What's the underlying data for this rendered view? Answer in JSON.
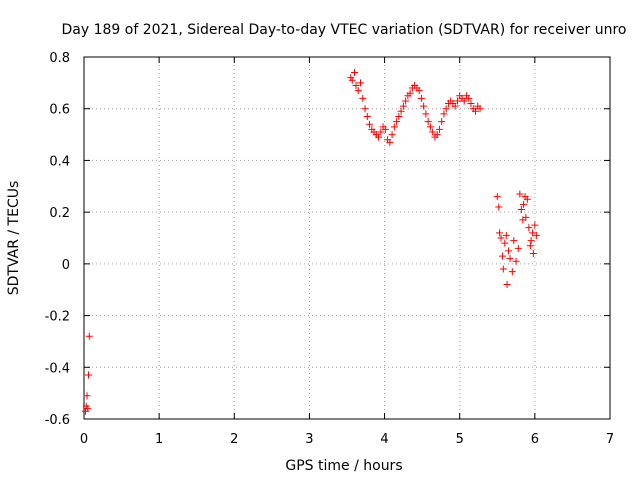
{
  "chart_data": {
    "type": "scatter",
    "title": "Day 189 of 2021, Sidereal Day-to-day VTEC variation (SDTVAR) for receiver unro",
    "xlabel": "GPS time / hours",
    "ylabel": "SDTVAR / TECUs",
    "xlim": [
      0,
      7
    ],
    "ylim": [
      -0.6,
      0.8
    ],
    "xticks": [
      0,
      1,
      2,
      3,
      4,
      5,
      6,
      7
    ],
    "xtick_labels": [
      "0",
      "1",
      "2",
      "3",
      "4",
      "5",
      "6",
      "7"
    ],
    "yticks": [
      -0.6,
      -0.4,
      -0.2,
      0,
      0.2,
      0.4,
      0.6,
      0.8
    ],
    "ytick_labels": [
      "-0.6",
      "-0.4",
      "-0.2",
      "0",
      "0.2",
      "0.4",
      "0.6",
      "0.8"
    ],
    "grid": true,
    "marker": "+",
    "color": "#ff0000",
    "series": [
      {
        "name": "SDTVAR",
        "x": [
          0.02,
          0.03,
          0.04,
          0.05,
          0.06,
          0.07,
          3.55,
          3.57,
          3.6,
          3.62,
          3.65,
          3.68,
          3.71,
          3.74,
          3.77,
          3.8,
          3.83,
          3.86,
          3.89,
          3.92,
          3.95,
          3.98,
          4.01,
          4.04,
          4.07,
          4.1,
          4.13,
          4.16,
          4.19,
          4.22,
          4.25,
          4.28,
          4.31,
          4.34,
          4.37,
          4.4,
          4.43,
          4.46,
          4.49,
          4.52,
          4.55,
          4.58,
          4.61,
          4.64,
          4.67,
          4.7,
          4.73,
          4.76,
          4.79,
          4.82,
          4.85,
          4.88,
          4.91,
          4.94,
          4.97,
          5.0,
          5.03,
          5.06,
          5.09,
          5.12,
          5.15,
          5.18,
          5.21,
          5.24,
          5.27,
          5.5,
          5.52,
          5.53,
          5.55,
          5.57,
          5.58,
          5.6,
          5.62,
          5.63,
          5.65,
          5.67,
          5.7,
          5.72,
          5.75,
          5.78,
          5.8,
          5.82,
          5.84,
          5.85,
          5.87,
          5.88,
          5.9,
          5.92,
          5.94,
          5.95,
          5.97,
          5.98,
          6.0,
          6.02
        ],
        "y": [
          -0.57,
          -0.55,
          -0.51,
          -0.56,
          -0.43,
          -0.28,
          0.72,
          0.71,
          0.74,
          0.69,
          0.67,
          0.7,
          0.64,
          0.6,
          0.57,
          0.54,
          0.52,
          0.51,
          0.5,
          0.49,
          0.51,
          0.53,
          0.52,
          0.48,
          0.47,
          0.5,
          0.53,
          0.55,
          0.57,
          0.59,
          0.61,
          0.63,
          0.65,
          0.66,
          0.68,
          0.69,
          0.68,
          0.67,
          0.64,
          0.61,
          0.58,
          0.55,
          0.53,
          0.51,
          0.49,
          0.5,
          0.52,
          0.55,
          0.58,
          0.6,
          0.62,
          0.63,
          0.62,
          0.61,
          0.63,
          0.65,
          0.64,
          0.63,
          0.65,
          0.64,
          0.62,
          0.6,
          0.59,
          0.61,
          0.6,
          0.26,
          0.22,
          0.12,
          0.1,
          0.03,
          -0.02,
          0.08,
          0.11,
          -0.08,
          0.05,
          0.02,
          -0.03,
          0.09,
          0.01,
          0.06,
          0.27,
          0.21,
          0.17,
          0.23,
          0.26,
          0.18,
          0.25,
          0.14,
          0.07,
          0.09,
          0.12,
          0.04,
          0.15,
          0.11
        ]
      }
    ]
  }
}
